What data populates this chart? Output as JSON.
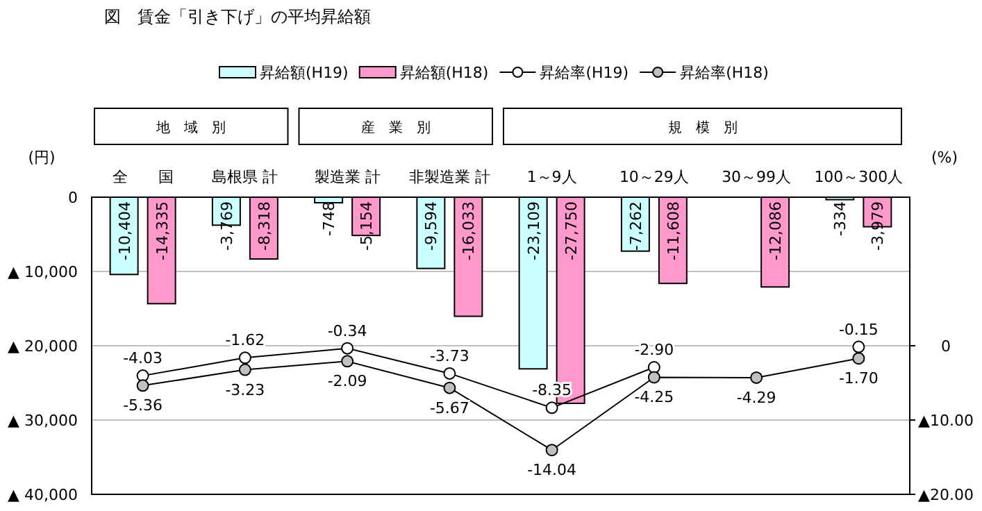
{
  "chart_data": {
    "type": "bar",
    "title": "図　賃金「引き下げ」の平均昇給額",
    "ylabel": "(円)",
    "y2label": "(%)",
    "annotations": [
      "地　域　別",
      "産　業　別",
      "規　模　別"
    ],
    "categories": [
      "全　　国",
      "島根県 計",
      "製造業 計",
      "非製造業 計",
      "1～9人",
      "10～29人",
      "30～99人",
      "100～300人"
    ],
    "series": [
      {
        "name": "昇給額(H19)",
        "color": "#ccffff",
        "values": [
          -10404,
          -3769,
          -748,
          -9594,
          -23109,
          -7262,
          null,
          -334
        ],
        "value_labels": [
          "-10,404",
          "-3,769",
          "-748",
          "-9,594",
          "-23,109",
          "-7,262",
          null,
          "-334"
        ]
      },
      {
        "name": "昇給額(H18)",
        "color": "#ff99cc",
        "values": [
          -14335,
          -8318,
          -5154,
          -16033,
          -27750,
          -11608,
          -12086,
          -3979
        ],
        "value_labels": [
          "-14,335",
          "-8,318",
          "-5,154",
          "-16,033",
          "-27,750",
          "-11,608",
          "-12,086",
          "-3,979"
        ]
      },
      {
        "name": "昇給率(H19)",
        "type": "line",
        "axis": "y2",
        "color": "#ffffff",
        "values": [
          -4.03,
          -1.62,
          -0.34,
          -3.73,
          -8.35,
          -2.9,
          null,
          -0.15
        ],
        "value_labels": [
          "-4.03",
          "-1.62",
          "-0.34",
          "-3.73",
          "-8.35",
          "-2.90",
          null,
          "-0.15"
        ]
      },
      {
        "name": "昇給率(H18)",
        "type": "line",
        "axis": "y2",
        "color": "#c0c0c0",
        "values": [
          -5.36,
          -3.23,
          -2.09,
          -5.67,
          -14.04,
          -4.25,
          -4.29,
          -1.7
        ],
        "value_labels": [
          "-5.36",
          "-3.23",
          "-2.09",
          "-5.67",
          "-14.04",
          "-4.25",
          "-4.29",
          "-1.70"
        ]
      }
    ],
    "ylim": [
      -40000,
      0
    ],
    "yticks": [
      0,
      {
        "value": -10000,
        "label": "▲ 10,000"
      },
      {
        "value": -20000,
        "label": "▲ 20,000"
      },
      {
        "value": -30000,
        "label": "▲ 30,000"
      },
      {
        "value": -40000,
        "label": "▲ 40,000"
      }
    ],
    "y2lim": [
      -20,
      20
    ],
    "y2ticks": [
      0,
      {
        "value": -10,
        "label": "▲10.00"
      },
      {
        "value": -20,
        "label": "▲20.00"
      }
    ],
    "grid": "y",
    "legend": "top",
    "marker": "circle",
    "line_style": "solid"
  }
}
